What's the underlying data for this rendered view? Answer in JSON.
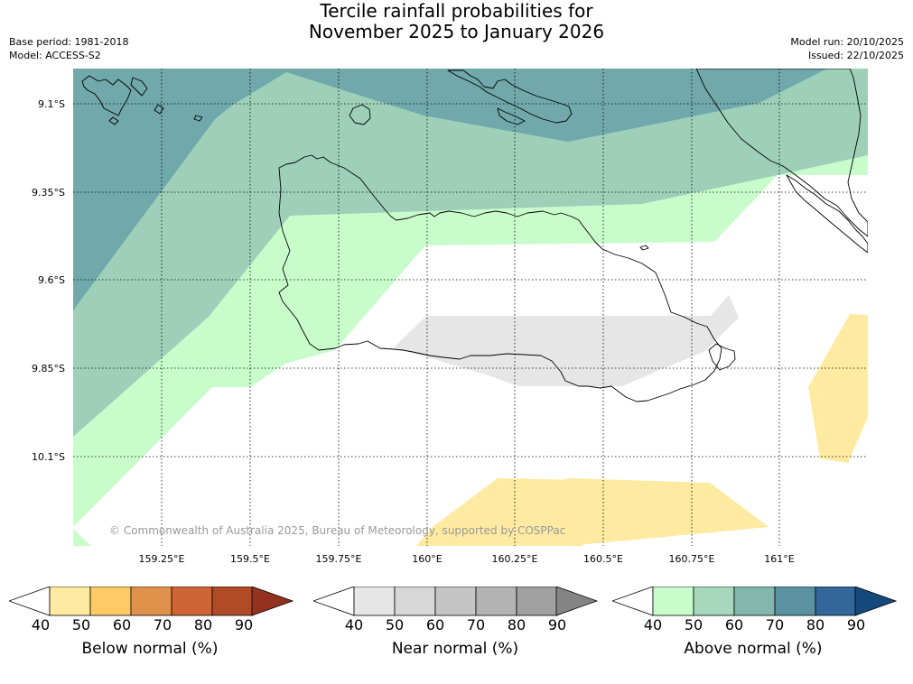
{
  "title": {
    "line1": "Tercile rainfall probabilities for",
    "line2": "November 2025 to January 2026"
  },
  "meta": {
    "base_period": "Base period: 1981-2018",
    "model": "Model: ACCESS-S2",
    "model_run": "Model run: 20/10/2025",
    "issued": "Issued: 22/10/2025"
  },
  "map": {
    "region": "Guadalcanal, Solomon Islands",
    "lat_labels": [
      "9.1°S",
      "9.35°S",
      "9.6°S",
      "9.85°S",
      "10.1°S"
    ],
    "lon_labels": [
      "159.25°E",
      "159.5°E",
      "159.75°E",
      "160°E",
      "160.25°E",
      "160.5°E",
      "160.75°E",
      "161°E"
    ],
    "copyright": "© Commonwealth of Australia 2025, Bureau of Meteorology, supported by COSPPac",
    "colors": {
      "above_50_60": "#9ed0b9",
      "above_60_70": "#70a8ab",
      "above_40_50": "#c9fccb",
      "below_40_50": "#feeaa0",
      "near_40_50": "#e6e6e6",
      "coastline": "#000000",
      "grid": "#000000"
    }
  },
  "colorbars": [
    {
      "title": "Below normal (%)",
      "ticks": [
        "40",
        "50",
        "60",
        "70",
        "80",
        "90"
      ],
      "colors": [
        "#feeaa0",
        "#fdca65",
        "#e0914b",
        "#cf6535",
        "#b04a27",
        "#943220"
      ]
    },
    {
      "title": "Near normal (%)",
      "ticks": [
        "40",
        "50",
        "60",
        "70",
        "80",
        "90"
      ],
      "colors": [
        "#e6e6e6",
        "#d7d7d7",
        "#c5c5c5",
        "#b3b3b3",
        "#a1a1a1",
        "#848484"
      ]
    },
    {
      "title": "Above normal (%)",
      "ticks": [
        "40",
        "50",
        "60",
        "70",
        "80",
        "90"
      ],
      "colors": [
        "#c9fccb",
        "#a5d8bd",
        "#83b7ad",
        "#5a92a2",
        "#33679a",
        "#15497d"
      ]
    }
  ]
}
